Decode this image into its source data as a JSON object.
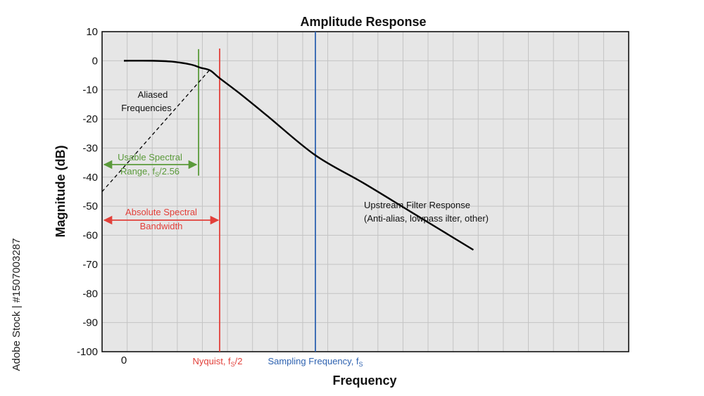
{
  "chart_data": {
    "type": "line",
    "title": "Amplitude Response",
    "xlabel": "Frequency",
    "ylabel": "Magnitude (dB)",
    "ylim": [
      -100,
      10
    ],
    "yticks": [
      10,
      0,
      -10,
      -20,
      -30,
      -40,
      -50,
      -60,
      -70,
      -80,
      -90,
      -100
    ],
    "grid": true,
    "x_tick_labels": {
      "zero": "0",
      "nyquist": "Nyquist, f",
      "nyquist_sub": "S",
      "nyquist_suffix": "/2",
      "sampling": "Sampling Frequency, f",
      "sampling_sub": "S"
    },
    "series": [
      {
        "name": "Upstream Filter Response",
        "x": [
          0,
          0.3,
          0.5,
          0.7,
          0.8,
          0.9,
          1.0,
          1.2,
          1.5,
          2.0,
          2.5,
          3.0,
          3.65
        ],
        "y": [
          0,
          0,
          -0.3,
          -1.3,
          -2.4,
          -3.3,
          -6,
          -11,
          -19,
          -32.5,
          -42,
          -52,
          -65
        ]
      }
    ],
    "aliased_line": {
      "x": [
        -0.25,
        0.9
      ],
      "y": [
        -45,
        -3
      ]
    },
    "markers": [
      {
        "label": "Nyquist",
        "x": 1.0,
        "color": "#e2403a"
      },
      {
        "label": "Sampling Frequency",
        "x": 2.0,
        "color": "#2e62b0"
      },
      {
        "label": "Usable Spectral Range",
        "x": 0.78,
        "color": "#5a9a3a"
      }
    ],
    "annotations": {
      "aliased_line1": "Aliased",
      "aliased_line2": "Frequencies",
      "usable_line1": "Usable Spectral",
      "usable_line2": "Range, f",
      "usable_sub": "S",
      "usable_suffix": "/2.56",
      "absolute_line1": "Absolute Spectral",
      "absolute_line2": "Bandwidth",
      "upstream_line1": "Upstream Filter Response",
      "upstream_line2": "(Anti-alias, lowpass  ilter, other)"
    },
    "colors": {
      "curve": "#000000",
      "nyquist": "#e2403a",
      "sampling": "#2e62b0",
      "usable": "#5a9a3a",
      "plot_bg": "#e6e6e6"
    }
  },
  "watermark": {
    "side_text": "Adobe Stock | #1507003287"
  }
}
